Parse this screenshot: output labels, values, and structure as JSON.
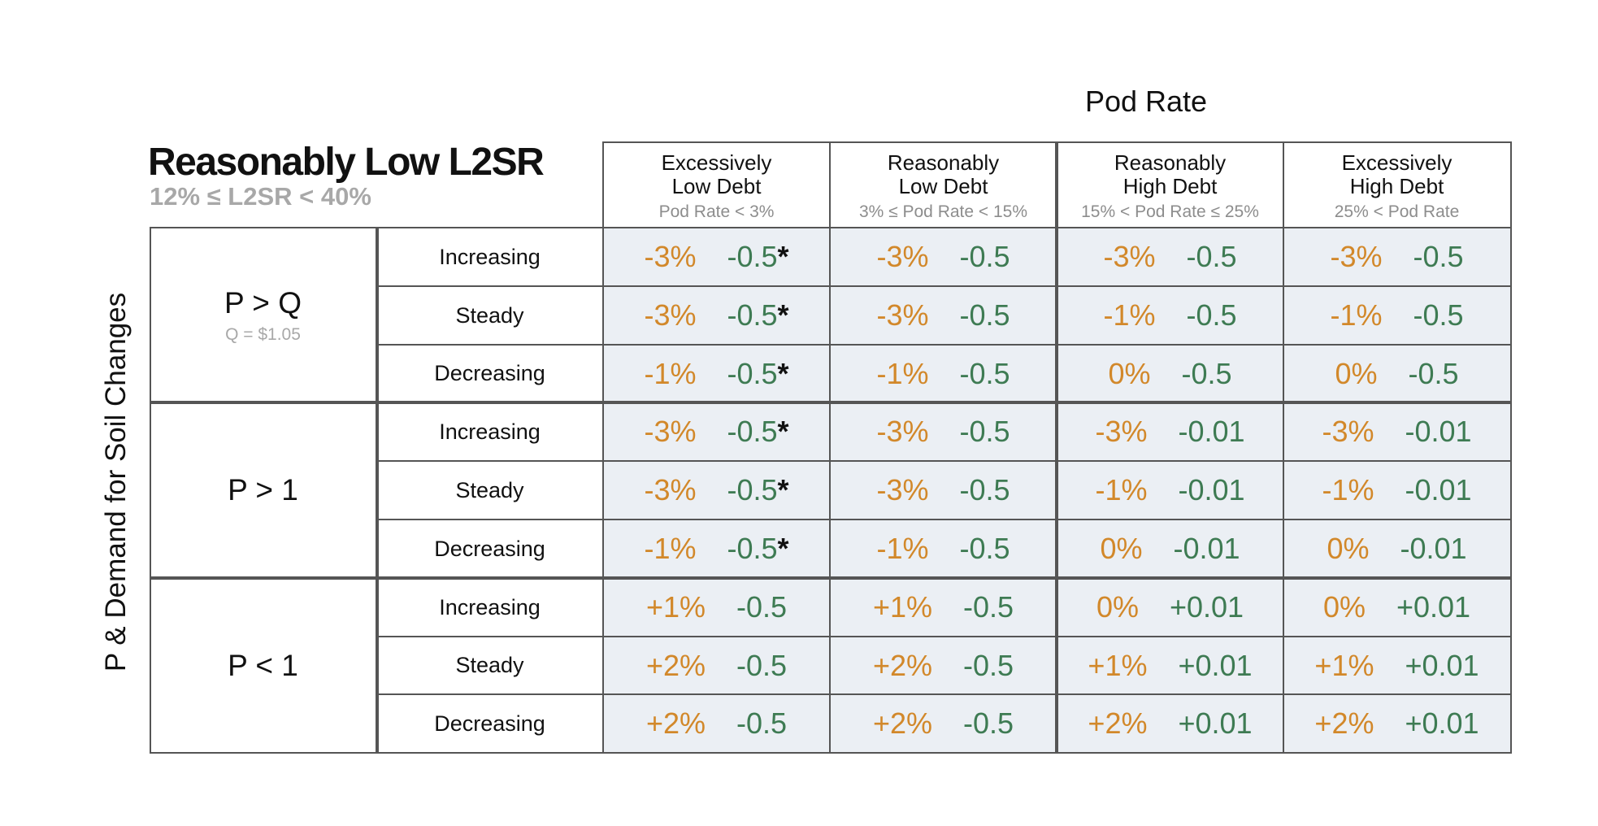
{
  "super_title": "Pod Rate",
  "title": "Reasonably Low L2SR",
  "subtitle": "12% ≤ L2SR < 40%",
  "y_axis_label": "P & Demand for Soil Changes",
  "columns": [
    {
      "line1": "Excessively",
      "line2": "Low Debt",
      "range": "Pod Rate < 3%"
    },
    {
      "line1": "Reasonably",
      "line2": "Low Debt",
      "range": "3% ≤ Pod Rate < 15%"
    },
    {
      "line1": "Reasonably",
      "line2": "High Debt",
      "range": "15% < Pod Rate ≤ 25%"
    },
    {
      "line1": "Excessively",
      "line2": "High Debt",
      "range": "25% < Pod Rate"
    }
  ],
  "groups": [
    {
      "label": "P > Q",
      "note": "Q = $1.05",
      "rows": [
        {
          "trend": "Increasing",
          "cells": [
            {
              "pct": "-3%",
              "val": "-0.5",
              "mark": "*"
            },
            {
              "pct": "-3%",
              "val": "-0.5",
              "mark": ""
            },
            {
              "pct": "-3%",
              "val": "-0.5",
              "mark": ""
            },
            {
              "pct": "-3%",
              "val": "-0.5",
              "mark": ""
            }
          ]
        },
        {
          "trend": "Steady",
          "cells": [
            {
              "pct": "-3%",
              "val": "-0.5",
              "mark": "*"
            },
            {
              "pct": "-3%",
              "val": "-0.5",
              "mark": ""
            },
            {
              "pct": "-1%",
              "val": "-0.5",
              "mark": ""
            },
            {
              "pct": "-1%",
              "val": "-0.5",
              "mark": ""
            }
          ]
        },
        {
          "trend": "Decreasing",
          "cells": [
            {
              "pct": "-1%",
              "val": "-0.5",
              "mark": "*"
            },
            {
              "pct": "-1%",
              "val": "-0.5",
              "mark": ""
            },
            {
              "pct": "0%",
              "val": "-0.5",
              "mark": ""
            },
            {
              "pct": "0%",
              "val": "-0.5",
              "mark": ""
            }
          ]
        }
      ]
    },
    {
      "label": "P > 1",
      "note": "",
      "rows": [
        {
          "trend": "Increasing",
          "cells": [
            {
              "pct": "-3%",
              "val": "-0.5",
              "mark": "*"
            },
            {
              "pct": "-3%",
              "val": "-0.5",
              "mark": ""
            },
            {
              "pct": "-3%",
              "val": "-0.01",
              "mark": ""
            },
            {
              "pct": "-3%",
              "val": "-0.01",
              "mark": ""
            }
          ]
        },
        {
          "trend": "Steady",
          "cells": [
            {
              "pct": "-3%",
              "val": "-0.5",
              "mark": "*"
            },
            {
              "pct": "-3%",
              "val": "-0.5",
              "mark": ""
            },
            {
              "pct": "-1%",
              "val": "-0.01",
              "mark": ""
            },
            {
              "pct": "-1%",
              "val": "-0.01",
              "mark": ""
            }
          ]
        },
        {
          "trend": "Decreasing",
          "cells": [
            {
              "pct": "-1%",
              "val": "-0.5",
              "mark": "*"
            },
            {
              "pct": "-1%",
              "val": "-0.5",
              "mark": ""
            },
            {
              "pct": "0%",
              "val": "-0.01",
              "mark": ""
            },
            {
              "pct": "0%",
              "val": "-0.01",
              "mark": ""
            }
          ]
        }
      ]
    },
    {
      "label": "P < 1",
      "note": "",
      "rows": [
        {
          "trend": "Increasing",
          "cells": [
            {
              "pct": "+1%",
              "val": "-0.5",
              "mark": ""
            },
            {
              "pct": "+1%",
              "val": "-0.5",
              "mark": ""
            },
            {
              "pct": "0%",
              "val": "+0.01",
              "mark": ""
            },
            {
              "pct": "0%",
              "val": "+0.01",
              "mark": ""
            }
          ]
        },
        {
          "trend": "Steady",
          "cells": [
            {
              "pct": "+2%",
              "val": "-0.5",
              "mark": ""
            },
            {
              "pct": "+2%",
              "val": "-0.5",
              "mark": ""
            },
            {
              "pct": "+1%",
              "val": "+0.01",
              "mark": ""
            },
            {
              "pct": "+1%",
              "val": "+0.01",
              "mark": ""
            }
          ]
        },
        {
          "trend": "Decreasing",
          "cells": [
            {
              "pct": "+2%",
              "val": "-0.5",
              "mark": ""
            },
            {
              "pct": "+2%",
              "val": "-0.5",
              "mark": ""
            },
            {
              "pct": "+2%",
              "val": "+0.01",
              "mark": ""
            },
            {
              "pct": "+2%",
              "val": "+0.01",
              "mark": ""
            }
          ]
        }
      ]
    }
  ],
  "colors": {
    "pct": "#d2882a",
    "value": "#3e7b53",
    "cell_background": "#ebeff4",
    "border": "#555555",
    "muted_text": "#a8a8a8"
  }
}
